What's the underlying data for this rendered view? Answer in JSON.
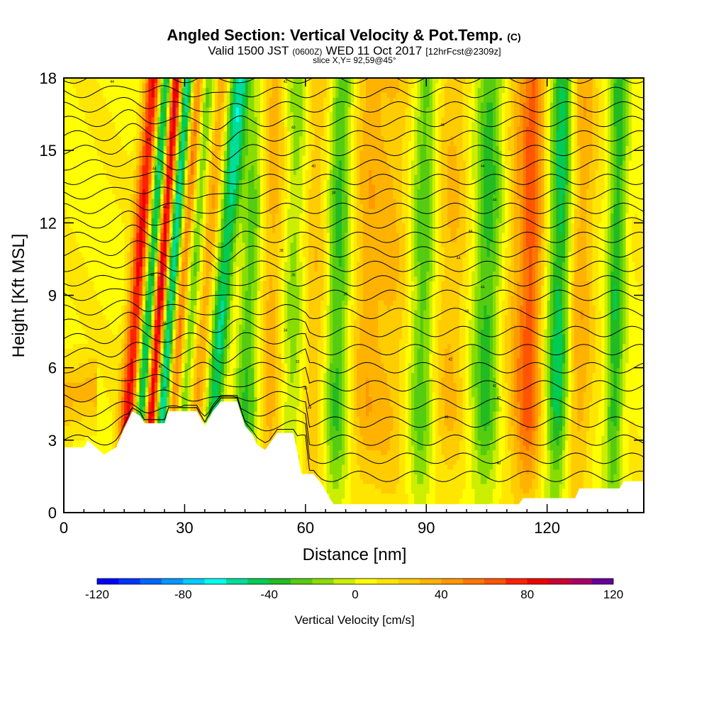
{
  "chart_data": {
    "type": "heatmap",
    "title": "Angled Section: Vertical Velocity & Pot.Temp.",
    "title_suffix": "(C)",
    "subtitle_parts": [
      "Valid 1500 JST",
      "(0600Z)",
      "WED 11 Oct 2017",
      "[12hrFcst@2309z]"
    ],
    "subtitle2": "slice X,Y= 92,59@45°",
    "xlabel": "Distance [nm]",
    "ylabel": "Height [Kft MSL]",
    "xlim": [
      0,
      144
    ],
    "ylim": [
      0,
      18
    ],
    "x_ticks": [
      "0",
      "30",
      "60",
      "90",
      "120"
    ],
    "x_tick_values": [
      0,
      30,
      60,
      90,
      120
    ],
    "y_ticks": [
      "0",
      "3",
      "6",
      "9",
      "12",
      "15",
      "18"
    ],
    "y_tick_values": [
      0,
      3,
      6,
      9,
      12,
      15,
      18
    ],
    "colorbar": {
      "label": "Vertical Velocity [cm/s]",
      "range": [
        -120,
        120
      ],
      "step": 10,
      "tick_labels": [
        "-120",
        "-80",
        "-40",
        "0",
        "40",
        "80",
        "120"
      ],
      "tick_values": [
        -120,
        -80,
        -40,
        0,
        40,
        80,
        120
      ],
      "colors": [
        "#0000ff",
        "#0033ff",
        "#0066ff",
        "#0099ff",
        "#00ccff",
        "#00ffee",
        "#00dd99",
        "#00cc55",
        "#22bb22",
        "#55cc11",
        "#88dd00",
        "#ccee00",
        "#ffff00",
        "#ffe600",
        "#ffcc00",
        "#ffb300",
        "#ff9900",
        "#ff7700",
        "#ff5500",
        "#ff2200",
        "#ee0000",
        "#cc0033",
        "#aa0066",
        "#660099"
      ]
    },
    "terrain": [
      [
        0,
        2.7
      ],
      [
        5,
        2.7
      ],
      [
        6,
        3.0
      ],
      [
        10,
        2.4
      ],
      [
        13,
        2.7
      ],
      [
        15,
        3.5
      ],
      [
        17,
        4.2
      ],
      [
        19,
        4.0
      ],
      [
        20,
        3.7
      ],
      [
        25,
        3.7
      ],
      [
        26,
        4.2
      ],
      [
        33,
        4.2
      ],
      [
        35,
        3.6
      ],
      [
        37,
        4.2
      ],
      [
        39,
        4.6
      ],
      [
        43,
        4.6
      ],
      [
        45,
        3.6
      ],
      [
        47,
        3.2
      ],
      [
        48,
        2.8
      ],
      [
        50,
        2.6
      ],
      [
        53,
        3.3
      ],
      [
        57,
        3.3
      ],
      [
        58,
        2.5
      ],
      [
        59,
        1.6
      ],
      [
        62,
        1.6
      ],
      [
        64,
        1.2
      ],
      [
        66,
        0.6
      ],
      [
        67,
        0.35
      ],
      [
        113,
        0.35
      ],
      [
        114,
        0.6
      ],
      [
        127,
        0.6
      ],
      [
        128,
        1.0
      ],
      [
        138,
        1.0
      ],
      [
        139,
        1.3
      ],
      [
        144,
        1.3
      ]
    ],
    "plumes": [
      {
        "x": 18,
        "w": 1.6,
        "v": 80
      },
      {
        "x": 21,
        "w": 1.4,
        "v": -85
      },
      {
        "x": 23.5,
        "w": 1.3,
        "v": 110
      },
      {
        "x": 26,
        "w": 1.3,
        "v": -80
      },
      {
        "x": 29,
        "w": 1.2,
        "v": 55
      },
      {
        "x": 31.5,
        "w": 1.5,
        "v": -40
      },
      {
        "x": 35,
        "w": 2.0,
        "v": 40
      },
      {
        "x": 39,
        "w": 2.0,
        "v": -65
      },
      {
        "x": 42,
        "w": 1.6,
        "v": 25
      },
      {
        "x": 46,
        "w": 2.5,
        "v": -40
      },
      {
        "x": 51,
        "w": 2.5,
        "v": 30
      },
      {
        "x": 57,
        "w": 2.0,
        "v": -25
      },
      {
        "x": 62,
        "w": 2.5,
        "v": 20
      },
      {
        "x": 68,
        "w": 2.0,
        "v": -40
      },
      {
        "x": 75,
        "w": 2.5,
        "v": 25
      },
      {
        "x": 81,
        "w": 3.0,
        "v": 22
      },
      {
        "x": 89,
        "w": 2.0,
        "v": -35
      },
      {
        "x": 96,
        "w": 3.0,
        "v": 22
      },
      {
        "x": 105,
        "w": 2.5,
        "v": -42
      },
      {
        "x": 113,
        "w": 3.0,
        "v": 25
      },
      {
        "x": 116,
        "w": 2.0,
        "v": 40
      },
      {
        "x": 123,
        "w": 2.0,
        "v": -55
      },
      {
        "x": 128,
        "w": 2.5,
        "v": 30
      },
      {
        "x": 137,
        "w": 1.5,
        "v": -45
      }
    ],
    "theta_labels": [
      "44",
      "44",
      "44",
      "44",
      "44",
      "44",
      "44",
      "42",
      "42",
      "42",
      "40",
      "40",
      "38",
      "38",
      "36",
      "36",
      "34",
      "32",
      "30"
    ]
  }
}
